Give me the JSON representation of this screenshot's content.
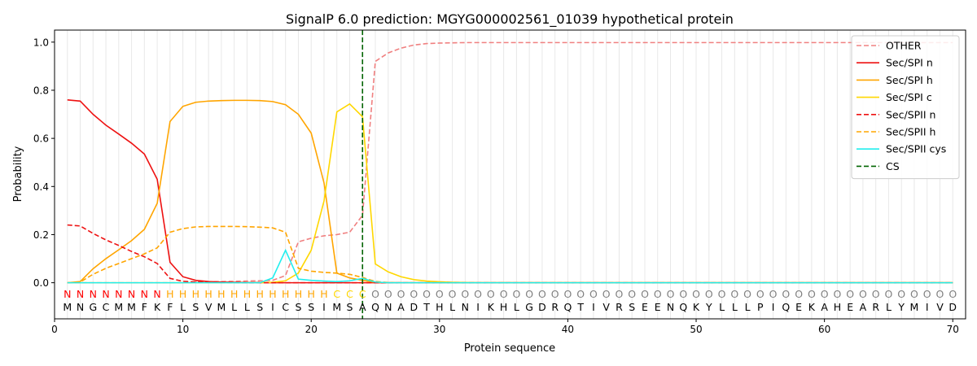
{
  "chart_data": {
    "type": "line",
    "title": "SignalP 6.0 prediction: MGYG000002561_01039 hypothetical protein",
    "xlabel": "Protein sequence",
    "ylabel": "Probability",
    "xlim": [
      0,
      71
    ],
    "ylim": [
      -0.15,
      1.05
    ],
    "x_ticks": [
      0,
      10,
      20,
      30,
      40,
      50,
      60,
      70
    ],
    "y_ticks": [
      0.0,
      0.2,
      0.4,
      0.6,
      0.8,
      1.0
    ],
    "grid": "vertical lines at each residue",
    "legend_position": "top-right",
    "sequence": "MNGCMMFKFLSVMLLSICSSIMSAQNADTHLNIKHLGDRQTIVRSEENQKYLLLPIQEKAHEARLYMIVD",
    "labels": "NNNNNNNNHHHHHHHHHHHHHCCCOOOOOOOOOOOOOOOOOOOOOOOOOOOOOOOOOOOOOOOOOOOOOO",
    "label_colors": {
      "N": "#ff0000",
      "H": "#ffa500",
      "C": "#ffd700",
      "O": "#808080"
    },
    "cs_position": 24,
    "series": [
      {
        "name": "OTHER",
        "color": "#f08080",
        "dash": "dashed",
        "values": [
          0.0,
          0.0,
          0.0,
          0.0,
          0.0,
          0.0,
          0.0,
          0.0,
          0.0,
          0.0,
          0.003,
          0.004,
          0.005,
          0.006,
          0.007,
          0.008,
          0.01,
          0.03,
          0.17,
          0.185,
          0.195,
          0.2,
          0.21,
          0.28,
          0.92,
          0.955,
          0.975,
          0.988,
          0.994,
          0.996,
          0.997,
          0.998,
          0.998,
          0.998,
          0.998,
          0.998,
          0.998,
          0.998,
          0.998,
          0.998,
          0.998,
          0.998,
          0.998,
          0.998,
          0.998,
          0.998,
          0.998,
          0.998,
          0.998,
          0.998,
          0.998,
          0.998,
          0.998,
          0.998,
          0.998,
          0.998,
          0.998,
          0.998,
          0.998,
          0.998,
          0.998,
          0.998,
          0.998,
          0.998,
          0.998,
          0.998,
          0.998,
          0.998,
          0.998,
          0.998
        ]
      },
      {
        "name": "Sec/SPI n",
        "color": "#ee1111",
        "dash": "solid",
        "values": [
          0.76,
          0.755,
          0.7,
          0.655,
          0.618,
          0.58,
          0.535,
          0.43,
          0.085,
          0.025,
          0.01,
          0.005,
          0.003,
          0.002,
          0.001,
          0.001,
          0.0,
          0.0,
          0.0,
          0.0,
          0.0,
          0.0,
          0.0,
          0.0,
          0.0,
          0.0,
          0.0,
          0.0,
          0.0,
          0.0,
          0.0,
          0.0,
          0.0,
          0.0,
          0.0,
          0.0,
          0.0,
          0.0,
          0.0,
          0.0,
          0.0,
          0.0,
          0.0,
          0.0,
          0.0,
          0.0,
          0.0,
          0.0,
          0.0,
          0.0,
          0.0,
          0.0,
          0.0,
          0.0,
          0.0,
          0.0,
          0.0,
          0.0,
          0.0,
          0.0,
          0.0,
          0.0,
          0.0,
          0.0,
          0.0,
          0.0,
          0.0,
          0.0,
          0.0,
          0.0
        ]
      },
      {
        "name": "Sec/SPI h",
        "color": "#ffa500",
        "dash": "solid",
        "values": [
          0.0,
          0.005,
          0.058,
          0.1,
          0.137,
          0.175,
          0.222,
          0.33,
          0.67,
          0.733,
          0.75,
          0.755,
          0.757,
          0.758,
          0.758,
          0.757,
          0.753,
          0.74,
          0.7,
          0.622,
          0.415,
          0.04,
          0.02,
          0.01,
          0.002,
          0.0,
          0.0,
          0.0,
          0.0,
          0.0,
          0.0,
          0.0,
          0.0,
          0.0,
          0.0,
          0.0,
          0.0,
          0.0,
          0.0,
          0.0,
          0.0,
          0.0,
          0.0,
          0.0,
          0.0,
          0.0,
          0.0,
          0.0,
          0.0,
          0.0,
          0.0,
          0.0,
          0.0,
          0.0,
          0.0,
          0.0,
          0.0,
          0.0,
          0.0,
          0.0,
          0.0,
          0.0,
          0.0,
          0.0,
          0.0,
          0.0,
          0.0,
          0.0,
          0.0,
          0.0
        ]
      },
      {
        "name": "Sec/SPI c",
        "color": "#ffd700",
        "dash": "solid",
        "values": [
          0.0,
          0.0,
          0.0,
          0.0,
          0.0,
          0.0,
          0.0,
          0.0,
          0.0,
          0.0,
          0.0,
          0.0,
          0.0,
          0.0,
          0.0,
          0.0,
          0.002,
          0.008,
          0.04,
          0.135,
          0.34,
          0.71,
          0.743,
          0.69,
          0.078,
          0.045,
          0.025,
          0.013,
          0.007,
          0.004,
          0.002,
          0.001,
          0.0,
          0.0,
          0.0,
          0.0,
          0.0,
          0.0,
          0.0,
          0.0,
          0.0,
          0.0,
          0.0,
          0.0,
          0.0,
          0.0,
          0.0,
          0.0,
          0.0,
          0.0,
          0.0,
          0.0,
          0.0,
          0.0,
          0.0,
          0.0,
          0.0,
          0.0,
          0.0,
          0.0,
          0.0,
          0.0,
          0.0,
          0.0,
          0.0,
          0.0,
          0.0,
          0.0,
          0.0,
          0.0
        ]
      },
      {
        "name": "Sec/SPII n",
        "color": "#ee1111",
        "dash": "dashed",
        "values": [
          0.24,
          0.236,
          0.205,
          0.178,
          0.155,
          0.13,
          0.108,
          0.08,
          0.018,
          0.006,
          0.003,
          0.002,
          0.001,
          0.001,
          0.0,
          0.0,
          0.0,
          0.0,
          0.0,
          0.0,
          0.0,
          0.0,
          0.0,
          0.0,
          0.0,
          0.0,
          0.0,
          0.0,
          0.0,
          0.0,
          0.0,
          0.0,
          0.0,
          0.0,
          0.0,
          0.0,
          0.0,
          0.0,
          0.0,
          0.0,
          0.0,
          0.0,
          0.0,
          0.0,
          0.0,
          0.0,
          0.0,
          0.0,
          0.0,
          0.0,
          0.0,
          0.0,
          0.0,
          0.0,
          0.0,
          0.0,
          0.0,
          0.0,
          0.0,
          0.0,
          0.0,
          0.0,
          0.0,
          0.0,
          0.0,
          0.0,
          0.0,
          0.0,
          0.0,
          0.0
        ]
      },
      {
        "name": "Sec/SPII h",
        "color": "#ffa500",
        "dash": "dashed",
        "values": [
          0.0,
          0.003,
          0.035,
          0.06,
          0.08,
          0.1,
          0.12,
          0.145,
          0.21,
          0.225,
          0.232,
          0.234,
          0.234,
          0.234,
          0.233,
          0.231,
          0.228,
          0.21,
          0.06,
          0.048,
          0.043,
          0.04,
          0.035,
          0.022,
          0.005,
          0.001,
          0.0,
          0.0,
          0.0,
          0.0,
          0.0,
          0.0,
          0.0,
          0.0,
          0.0,
          0.0,
          0.0,
          0.0,
          0.0,
          0.0,
          0.0,
          0.0,
          0.0,
          0.0,
          0.0,
          0.0,
          0.0,
          0.0,
          0.0,
          0.0,
          0.0,
          0.0,
          0.0,
          0.0,
          0.0,
          0.0,
          0.0,
          0.0,
          0.0,
          0.0,
          0.0,
          0.0,
          0.0,
          0.0,
          0.0,
          0.0,
          0.0,
          0.0,
          0.0,
          0.0
        ]
      },
      {
        "name": "Sec/SPII cys",
        "color": "#22eeee",
        "dash": "solid",
        "values": [
          0.0,
          0.0,
          0.0,
          0.0,
          0.0,
          0.0,
          0.0,
          0.0,
          0.0,
          0.0,
          0.0,
          0.0,
          0.0,
          0.0,
          0.0,
          0.0,
          0.02,
          0.135,
          0.015,
          0.01,
          0.007,
          0.005,
          0.008,
          0.018,
          0.003,
          0.0,
          0.0,
          0.0,
          0.0,
          0.0,
          0.0,
          0.0,
          0.0,
          0.0,
          0.0,
          0.0,
          0.0,
          0.0,
          0.0,
          0.0,
          0.0,
          0.0,
          0.0,
          0.0,
          0.0,
          0.0,
          0.0,
          0.0,
          0.0,
          0.0,
          0.0,
          0.0,
          0.0,
          0.0,
          0.0,
          0.0,
          0.0,
          0.0,
          0.0,
          0.0,
          0.0,
          0.0,
          0.0,
          0.0,
          0.0,
          0.0,
          0.0,
          0.0,
          0.0,
          0.0
        ]
      }
    ],
    "cs_legend": {
      "name": "CS",
      "color": "#006400",
      "dash": "dashed"
    }
  }
}
